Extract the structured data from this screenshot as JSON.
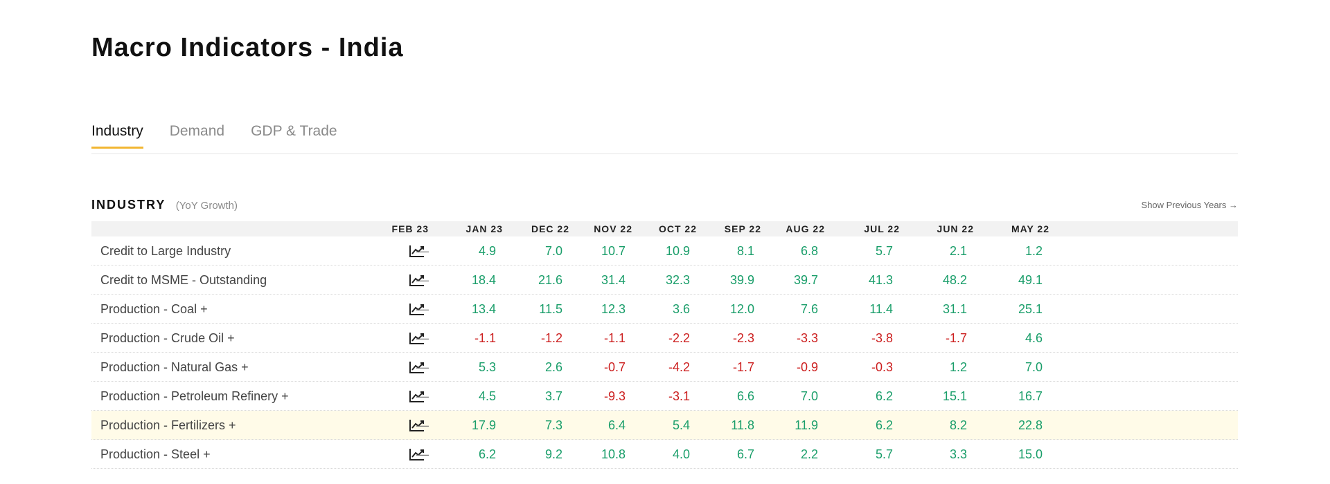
{
  "page": {
    "title": "Macro Indicators - India"
  },
  "tabs": [
    {
      "label": "Industry",
      "active": true
    },
    {
      "label": "Demand",
      "active": false
    },
    {
      "label": "GDP & Trade",
      "active": false
    }
  ],
  "section": {
    "title": "INDUSTRY",
    "subtitle": "(YoY Growth)",
    "show_previous": "Show Previous Years →"
  },
  "icons": {
    "row_chart": "trend-chart-icon"
  },
  "colors": {
    "positive": "#1a9e6a",
    "negative": "#cc1f1f",
    "tab_accent": "#f2b632",
    "highlight_row": "#fffbe8"
  },
  "table": {
    "columns": [
      "FEB 23",
      "JAN 23",
      "DEC 22",
      "NOV 22",
      "OCT 22",
      "SEP 22",
      "AUG 22",
      "JUL 22",
      "JUN 22",
      "MAY 22"
    ],
    "rows": [
      {
        "label": "Credit to Large Industry",
        "values": [
          "—",
          "4.9",
          "7.0",
          "10.7",
          "10.9",
          "8.1",
          "6.8",
          "5.7",
          "2.1",
          "1.2"
        ]
      },
      {
        "label": "Credit to MSME - Outstanding",
        "values": [
          "—",
          "18.4",
          "21.6",
          "31.4",
          "32.3",
          "39.9",
          "39.7",
          "41.3",
          "48.2",
          "49.1"
        ]
      },
      {
        "label": "Production - Coal +",
        "values": [
          "—",
          "13.4",
          "11.5",
          "12.3",
          "3.6",
          "12.0",
          "7.6",
          "11.4",
          "31.1",
          "25.1"
        ]
      },
      {
        "label": "Production - Crude Oil +",
        "values": [
          "—",
          "-1.1",
          "-1.2",
          "-1.1",
          "-2.2",
          "-2.3",
          "-3.3",
          "-3.8",
          "-1.7",
          "4.6"
        ]
      },
      {
        "label": "Production - Natural Gas +",
        "values": [
          "—",
          "5.3",
          "2.6",
          "-0.7",
          "-4.2",
          "-1.7",
          "-0.9",
          "-0.3",
          "1.2",
          "7.0"
        ]
      },
      {
        "label": "Production - Petroleum Refinery +",
        "values": [
          "—",
          "4.5",
          "3.7",
          "-9.3",
          "-3.1",
          "6.6",
          "7.0",
          "6.2",
          "15.1",
          "16.7"
        ]
      },
      {
        "label": "Production - Fertilizers +",
        "highlight": true,
        "values": [
          "—",
          "17.9",
          "7.3",
          "6.4",
          "5.4",
          "11.8",
          "11.9",
          "6.2",
          "8.2",
          "22.8"
        ]
      },
      {
        "label": "Production - Steel +",
        "values": [
          "—",
          "6.2",
          "9.2",
          "10.8",
          "4.0",
          "6.7",
          "2.2",
          "5.7",
          "3.3",
          "15.0"
        ]
      }
    ]
  }
}
